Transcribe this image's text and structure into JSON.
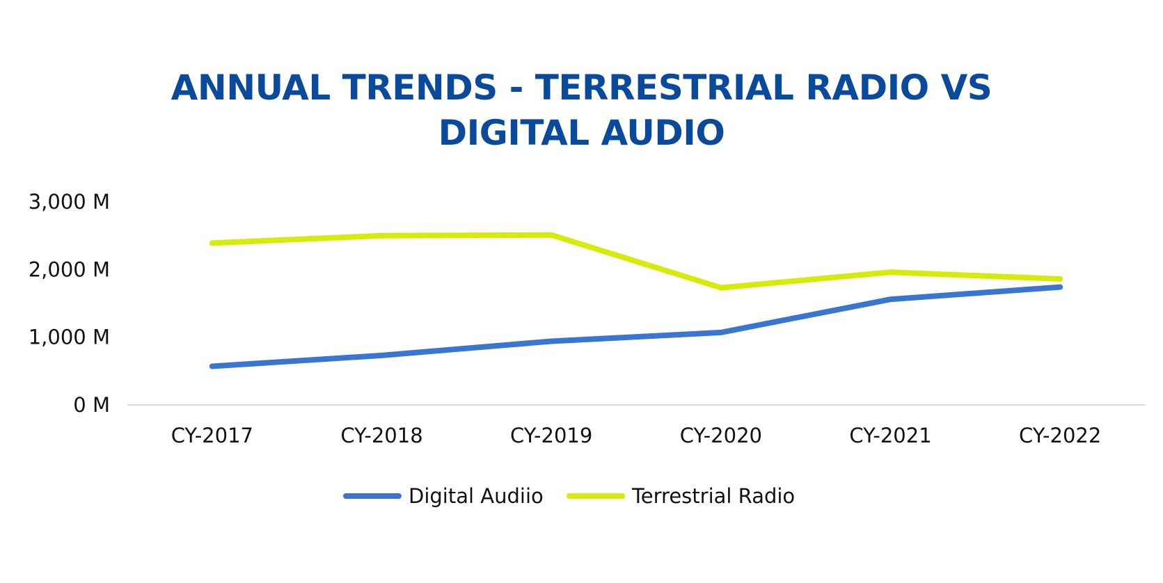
{
  "chart_data": {
    "type": "line",
    "title_lines": [
      "ANNUAL TRENDS - TERRESTRIAL RADIO VS",
      "DIGITAL AUDIO"
    ],
    "xlabel": "",
    "ylabel": "",
    "categories": [
      "CY-2017",
      "CY-2018",
      "CY-2019",
      "CY-2020",
      "CY-2021",
      "CY-2022"
    ],
    "y_ticks": [
      {
        "value": 0,
        "label": "0 M"
      },
      {
        "value": 1000,
        "label": "1,000 M"
      },
      {
        "value": 2000,
        "label": "2,000 M"
      },
      {
        "value": 3000,
        "label": "3,000 M"
      }
    ],
    "ylim": [
      0,
      3000
    ],
    "grid": false,
    "legend_position": "bottom",
    "series": [
      {
        "name": "Digital Audiio",
        "color": "#3a76d0",
        "values": [
          570,
          730,
          940,
          1070,
          1560,
          1740
        ]
      },
      {
        "name": "Terrestrial Radio",
        "color": "#d6ea0c",
        "values": [
          2390,
          2500,
          2510,
          1730,
          1960,
          1860
        ]
      }
    ],
    "axis_color": "#d9d9d9",
    "title_color": "#0a4a9c"
  }
}
